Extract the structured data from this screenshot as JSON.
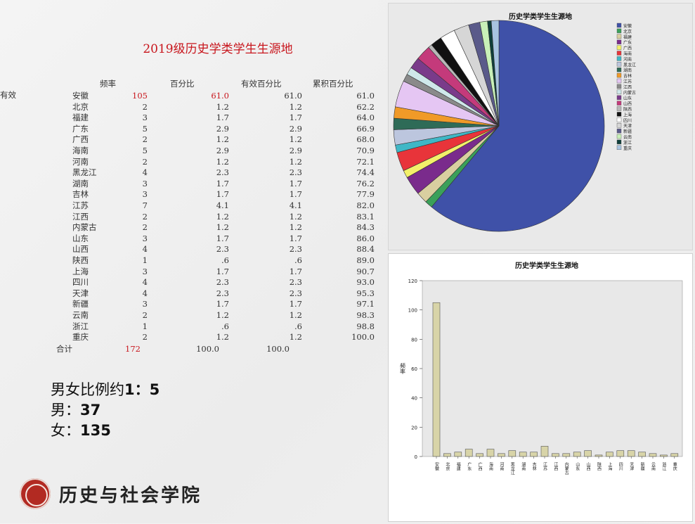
{
  "title": "2019级历史学类学生生源地",
  "table": {
    "headers": {
      "freq": "频率",
      "pct": "百分比",
      "valid_pct": "有效百分比",
      "cum_pct": "累积百分比"
    },
    "valid_label": "有效",
    "rows": [
      {
        "prov": "安徽",
        "freq": "105",
        "pct": "61.0",
        "valid": "61.0",
        "cum": "61.0",
        "highlight": true
      },
      {
        "prov": "北京",
        "freq": "2",
        "pct": "1.2",
        "valid": "1.2",
        "cum": "62.2"
      },
      {
        "prov": "福建",
        "freq": "3",
        "pct": "1.7",
        "valid": "1.7",
        "cum": "64.0"
      },
      {
        "prov": "广东",
        "freq": "5",
        "pct": "2.9",
        "valid": "2.9",
        "cum": "66.9"
      },
      {
        "prov": "广西",
        "freq": "2",
        "pct": "1.2",
        "valid": "1.2",
        "cum": "68.0"
      },
      {
        "prov": "海南",
        "freq": "5",
        "pct": "2.9",
        "valid": "2.9",
        "cum": "70.9"
      },
      {
        "prov": "河南",
        "freq": "2",
        "pct": "1.2",
        "valid": "1.2",
        "cum": "72.1"
      },
      {
        "prov": "黑龙江",
        "freq": "4",
        "pct": "2.3",
        "valid": "2.3",
        "cum": "74.4"
      },
      {
        "prov": "湖南",
        "freq": "3",
        "pct": "1.7",
        "valid": "1.7",
        "cum": "76.2"
      },
      {
        "prov": "吉林",
        "freq": "3",
        "pct": "1.7",
        "valid": "1.7",
        "cum": "77.9"
      },
      {
        "prov": "江苏",
        "freq": "7",
        "pct": "4.1",
        "valid": "4.1",
        "cum": "82.0"
      },
      {
        "prov": "江西",
        "freq": "2",
        "pct": "1.2",
        "valid": "1.2",
        "cum": "83.1"
      },
      {
        "prov": "内蒙古",
        "freq": "2",
        "pct": "1.2",
        "valid": "1.2",
        "cum": "84.3"
      },
      {
        "prov": "山东",
        "freq": "3",
        "pct": "1.7",
        "valid": "1.7",
        "cum": "86.0"
      },
      {
        "prov": "山西",
        "freq": "4",
        "pct": "2.3",
        "valid": "2.3",
        "cum": "88.4"
      },
      {
        "prov": "陕西",
        "freq": "1",
        "pct": ".6",
        "valid": ".6",
        "cum": "89.0"
      },
      {
        "prov": "上海",
        "freq": "3",
        "pct": "1.7",
        "valid": "1.7",
        "cum": "90.7"
      },
      {
        "prov": "四川",
        "freq": "4",
        "pct": "2.3",
        "valid": "2.3",
        "cum": "93.0"
      },
      {
        "prov": "天津",
        "freq": "4",
        "pct": "2.3",
        "valid": "2.3",
        "cum": "95.3"
      },
      {
        "prov": "新疆",
        "freq": "3",
        "pct": "1.7",
        "valid": "1.7",
        "cum": "97.1"
      },
      {
        "prov": "云南",
        "freq": "2",
        "pct": "1.2",
        "valid": "1.2",
        "cum": "98.3"
      },
      {
        "prov": "浙江",
        "freq": "1",
        "pct": ".6",
        "valid": ".6",
        "cum": "98.8"
      },
      {
        "prov": "重庆",
        "freq": "2",
        "pct": "1.2",
        "valid": "1.2",
        "cum": "100.0"
      }
    ],
    "total": {
      "label": "合计",
      "freq": "172",
      "pct": "100.0",
      "valid": "100.0"
    }
  },
  "summary": {
    "ratio_prefix": "男女比例约",
    "ratio_value": "1：5",
    "male_label": "男：",
    "male_value": "37",
    "female_label": "女：",
    "female_value": "135"
  },
  "footer": {
    "school": "历史与社会学院",
    "logo_icon": "college-seal-icon"
  },
  "chart_data": [
    {
      "type": "pie",
      "title": "历史学类学生生源地",
      "categories": [
        "安徽",
        "北京",
        "福建",
        "广东",
        "广西",
        "海南",
        "河南",
        "黑龙江",
        "湖南",
        "吉林",
        "江苏",
        "江西",
        "内蒙古",
        "山东",
        "山西",
        "陕西",
        "上海",
        "四川",
        "天津",
        "新疆",
        "云南",
        "浙江",
        "重庆"
      ],
      "values": [
        105,
        2,
        3,
        5,
        2,
        5,
        2,
        4,
        3,
        3,
        7,
        2,
        2,
        3,
        4,
        1,
        3,
        4,
        4,
        3,
        2,
        1,
        2
      ],
      "colors": [
        "#3f51a8",
        "#3aa05a",
        "#d9cfa0",
        "#7a2b8c",
        "#f3f06a",
        "#e8343a",
        "#3fb7c6",
        "#bcc6de",
        "#2e6b57",
        "#f09a28",
        "#e5c6f3",
        "#8a8a8a",
        "#cfe8ea",
        "#7a3b8a",
        "#c43a7b",
        "#b8b8b8",
        "#111111",
        "#ffffff",
        "#d6d6d6",
        "#5a5a8a",
        "#c8f0b8",
        "#0f3f3a",
        "#a8c4e0"
      ],
      "legend_position": "right"
    },
    {
      "type": "bar",
      "title": "历史学类学生生源地",
      "categories": [
        "安徽",
        "北京",
        "福建",
        "广东",
        "广西",
        "海南",
        "河南",
        "黑龙江",
        "湖南",
        "吉林",
        "江苏",
        "江西",
        "内蒙古",
        "山东",
        "山西",
        "陕西",
        "上海",
        "四川",
        "天津",
        "新疆",
        "云南",
        "浙江",
        "重庆"
      ],
      "values": [
        105,
        2,
        3,
        5,
        2,
        5,
        2,
        4,
        3,
        3,
        7,
        2,
        2,
        3,
        4,
        1,
        3,
        4,
        4,
        3,
        2,
        1,
        2
      ],
      "ylabel": "频率",
      "ylim": [
        0,
        120
      ],
      "yticks": [
        0,
        20,
        40,
        60,
        80,
        100,
        120
      ],
      "bar_color": "#d8d4a8"
    }
  ]
}
